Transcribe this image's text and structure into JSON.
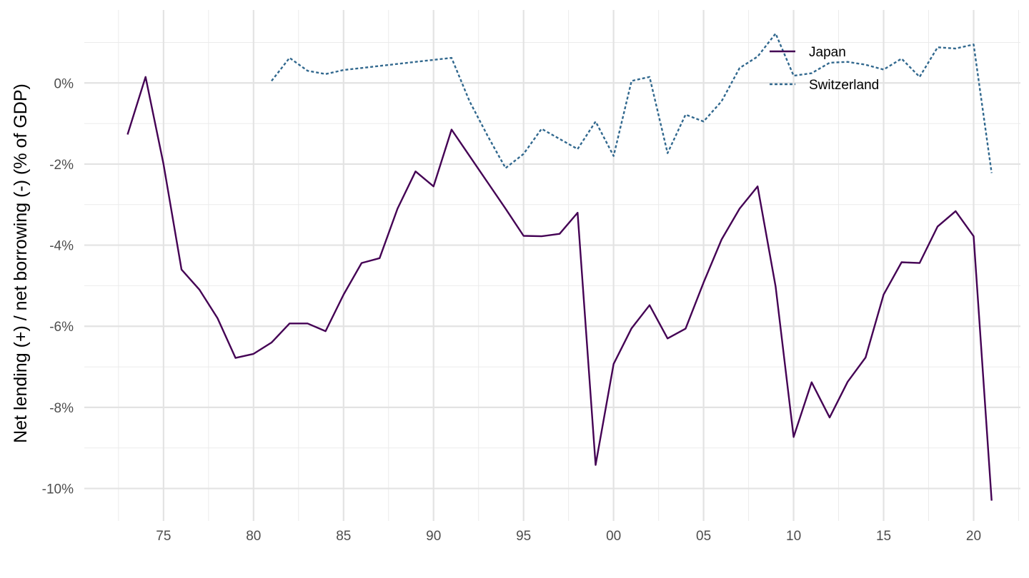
{
  "chart_data": {
    "type": "line",
    "title": "",
    "xlabel": "",
    "ylabel": "Net lending (+) / net borrowing (-) (% of GDP)",
    "xlim": [
      1970.6,
      2022.6
    ],
    "ylim": [
      -10.8,
      1.8
    ],
    "x_ticks": [
      {
        "value": 1975,
        "label": "75"
      },
      {
        "value": 1980,
        "label": "80"
      },
      {
        "value": 1985,
        "label": "85"
      },
      {
        "value": 1990,
        "label": "90"
      },
      {
        "value": 1995,
        "label": "95"
      },
      {
        "value": 2000,
        "label": "00"
      },
      {
        "value": 2005,
        "label": "05"
      },
      {
        "value": 2010,
        "label": "10"
      },
      {
        "value": 2015,
        "label": "15"
      },
      {
        "value": 2020,
        "label": "20"
      }
    ],
    "y_ticks": [
      {
        "value": 0,
        "label": "0%"
      },
      {
        "value": -2,
        "label": "-2%"
      },
      {
        "value": -4,
        "label": "-4%"
      },
      {
        "value": -6,
        "label": "-6%"
      },
      {
        "value": -8,
        "label": "-8%"
      },
      {
        "value": -10,
        "label": "-10%"
      }
    ],
    "grid": true,
    "legend_position": "top-right",
    "series": [
      {
        "name": "Japan",
        "color": "#440154",
        "dash": "solid",
        "points": [
          [
            1973,
            -1.27
          ],
          [
            1974,
            0.15
          ],
          [
            1975,
            -2.0
          ],
          [
            1976,
            -4.6
          ],
          [
            1977,
            -5.1
          ],
          [
            1978,
            -5.8
          ],
          [
            1979,
            -6.78
          ],
          [
            1980,
            -6.68
          ],
          [
            1981,
            -6.4
          ],
          [
            1982,
            -5.93
          ],
          [
            1983,
            -5.93
          ],
          [
            1984,
            -6.12
          ],
          [
            1985,
            -5.22
          ],
          [
            1986,
            -4.44
          ],
          [
            1987,
            -4.32
          ],
          [
            1988,
            -3.1
          ],
          [
            1989,
            -2.18
          ],
          [
            1990,
            -2.55
          ],
          [
            1991,
            -1.15
          ],
          [
            1992,
            -1.8
          ],
          [
            1993,
            -2.45
          ],
          [
            1994,
            -3.1
          ],
          [
            1995,
            -3.77
          ],
          [
            1996,
            -3.78
          ],
          [
            1997,
            -3.72
          ],
          [
            1998,
            -3.2
          ],
          [
            1999,
            -9.42
          ],
          [
            2000,
            -6.93
          ],
          [
            2001,
            -6.05
          ],
          [
            2002,
            -5.48
          ],
          [
            2003,
            -6.3
          ],
          [
            2004,
            -6.06
          ],
          [
            2005,
            -4.92
          ],
          [
            2006,
            -3.86
          ],
          [
            2007,
            -3.1
          ],
          [
            2008,
            -2.55
          ],
          [
            2009,
            -5.02
          ],
          [
            2010,
            -8.73
          ],
          [
            2011,
            -7.38
          ],
          [
            2012,
            -8.25
          ],
          [
            2013,
            -7.37
          ],
          [
            2014,
            -6.77
          ],
          [
            2015,
            -5.22
          ],
          [
            2016,
            -4.42
          ],
          [
            2017,
            -4.44
          ],
          [
            2018,
            -3.54
          ],
          [
            2019,
            -3.16
          ],
          [
            2020,
            -3.78
          ],
          [
            2021,
            -10.3
          ]
        ]
      },
      {
        "name": "Switzerland",
        "color": "#31688e",
        "dash": "dotted",
        "points": [
          [
            1981,
            0.05
          ],
          [
            1982,
            0.62
          ],
          [
            1983,
            0.3
          ],
          [
            1984,
            0.22
          ],
          [
            1985,
            0.32
          ],
          [
            1986,
            0.37
          ],
          [
            1987,
            0.42
          ],
          [
            1988,
            0.47
          ],
          [
            1989,
            0.52
          ],
          [
            1990,
            0.57
          ],
          [
            1991,
            0.62
          ],
          [
            1992,
            -0.45
          ],
          [
            1993,
            -1.3
          ],
          [
            1994,
            -2.1
          ],
          [
            1995,
            -1.75
          ],
          [
            1996,
            -1.13
          ],
          [
            1997,
            -1.38
          ],
          [
            1998,
            -1.63
          ],
          [
            1999,
            -0.95
          ],
          [
            2000,
            -1.8
          ],
          [
            2001,
            0.05
          ],
          [
            2002,
            0.15
          ],
          [
            2003,
            -1.73
          ],
          [
            2004,
            -0.78
          ],
          [
            2005,
            -0.95
          ],
          [
            2006,
            -0.45
          ],
          [
            2007,
            0.37
          ],
          [
            2008,
            0.65
          ],
          [
            2009,
            1.22
          ],
          [
            2010,
            0.18
          ],
          [
            2011,
            0.24
          ],
          [
            2012,
            0.5
          ],
          [
            2013,
            0.52
          ],
          [
            2014,
            0.45
          ],
          [
            2015,
            0.33
          ],
          [
            2016,
            0.6
          ],
          [
            2017,
            0.15
          ],
          [
            2018,
            0.88
          ],
          [
            2019,
            0.85
          ],
          [
            2020,
            0.95
          ],
          [
            2021,
            -2.22
          ]
        ]
      }
    ]
  }
}
